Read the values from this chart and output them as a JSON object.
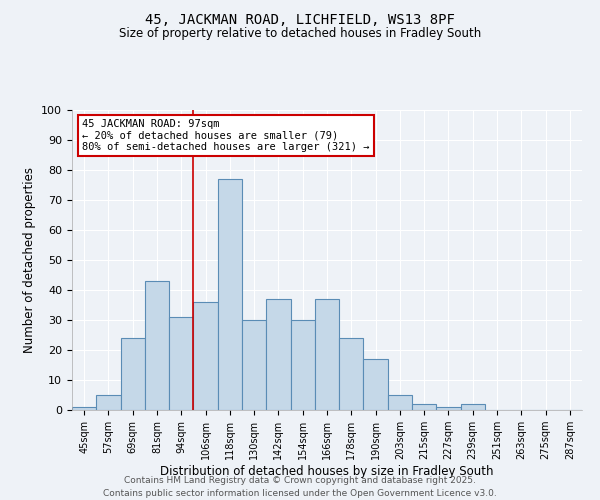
{
  "title_line1": "45, JACKMAN ROAD, LICHFIELD, WS13 8PF",
  "title_line2": "Size of property relative to detached houses in Fradley South",
  "xlabel": "Distribution of detached houses by size in Fradley South",
  "ylabel": "Number of detached properties",
  "categories": [
    "45sqm",
    "57sqm",
    "69sqm",
    "81sqm",
    "94sqm",
    "106sqm",
    "118sqm",
    "130sqm",
    "142sqm",
    "154sqm",
    "166sqm",
    "178sqm",
    "190sqm",
    "203sqm",
    "215sqm",
    "227sqm",
    "239sqm",
    "251sqm",
    "263sqm",
    "275sqm",
    "287sqm"
  ],
  "values": [
    1,
    5,
    24,
    43,
    31,
    36,
    77,
    30,
    37,
    30,
    37,
    24,
    17,
    5,
    2,
    1,
    2,
    0,
    0,
    0,
    0
  ],
  "bar_color": "#c5d8e8",
  "bar_edge_color": "#5a8cb5",
  "bg_color": "#eef2f7",
  "grid_color": "#ffffff",
  "red_line_x": 4.5,
  "annotation_line1": "45 JACKMAN ROAD: 97sqm",
  "annotation_line2": "← 20% of detached houses are smaller (79)",
  "annotation_line3": "80% of semi-detached houses are larger (321) →",
  "annotation_box_color": "#ffffff",
  "annotation_box_edge": "#cc0000",
  "ylim": [
    0,
    100
  ],
  "yticks": [
    0,
    10,
    20,
    30,
    40,
    50,
    60,
    70,
    80,
    90,
    100
  ],
  "footer_line1": "Contains HM Land Registry data © Crown copyright and database right 2025.",
  "footer_line2": "Contains public sector information licensed under the Open Government Licence v3.0."
}
